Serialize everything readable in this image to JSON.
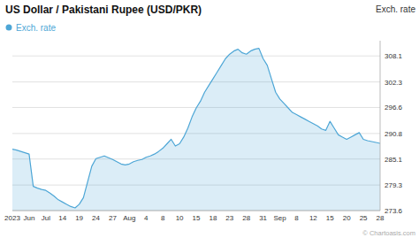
{
  "chart_data": {
    "type": "area",
    "title": "US Dollar / Pakistani Rupee (USD/PKR)",
    "y_label": "Exch. rate",
    "annotations": [
      "© Chartoasis.com"
    ],
    "categories": [
      "2023",
      null,
      null,
      null,
      "Jun",
      null,
      null,
      null,
      "Jul",
      null,
      null,
      null,
      "14",
      null,
      null,
      null,
      "19",
      null,
      null,
      null,
      "24",
      null,
      null,
      null,
      "27",
      null,
      null,
      null,
      "Aug",
      null,
      null,
      null,
      "4",
      null,
      null,
      null,
      "8",
      null,
      null,
      null,
      "10",
      null,
      null,
      null,
      "15",
      null,
      null,
      null,
      "18",
      null,
      null,
      null,
      "23",
      null,
      null,
      null,
      "28",
      null,
      null,
      null,
      "31",
      null,
      null,
      null,
      "Sep",
      null,
      null,
      null,
      "8",
      null,
      null,
      null,
      "12",
      null,
      null,
      null,
      "15",
      null,
      null,
      null,
      "20",
      null,
      null,
      null,
      "25",
      null,
      null,
      null,
      "28"
    ],
    "series": [
      {
        "name": "Exch. rate",
        "color": "#4da6d6",
        "values": [
          287.3,
          287.1,
          286.8,
          286.5,
          286.2,
          279.0,
          278.6,
          278.3,
          278.1,
          277.5,
          276.8,
          276.0,
          275.5,
          275.0,
          274.5,
          274.2,
          275.0,
          276.5,
          280.0,
          283.5,
          285.2,
          285.5,
          285.8,
          285.4,
          285.0,
          284.5,
          284.0,
          283.8,
          284.0,
          284.5,
          284.8,
          285.0,
          285.5,
          285.8,
          286.2,
          286.8,
          287.5,
          288.5,
          289.5,
          288.0,
          288.5,
          290.0,
          292.0,
          294.5,
          296.5,
          298.0,
          300.0,
          301.5,
          303.0,
          304.5,
          306.0,
          307.5,
          308.5,
          309.2,
          309.6,
          308.8,
          308.5,
          309.2,
          309.6,
          309.8,
          307.5,
          306.0,
          303.0,
          300.0,
          298.5,
          297.5,
          296.5,
          295.5,
          295.0,
          294.5,
          294.0,
          293.5,
          293.0,
          292.5,
          291.8,
          291.5,
          293.5,
          292.0,
          290.5,
          290.0,
          289.5,
          290.0,
          290.5,
          291.0,
          289.5,
          289.2,
          289.0,
          288.8,
          288.6
        ]
      }
    ],
    "ylim": [
      273.6,
      311.5
    ],
    "yticks": [
      273.6,
      279.3,
      285.1,
      290.8,
      296.6,
      302.3,
      308.1
    ],
    "grid": true,
    "legend": "upper left"
  }
}
